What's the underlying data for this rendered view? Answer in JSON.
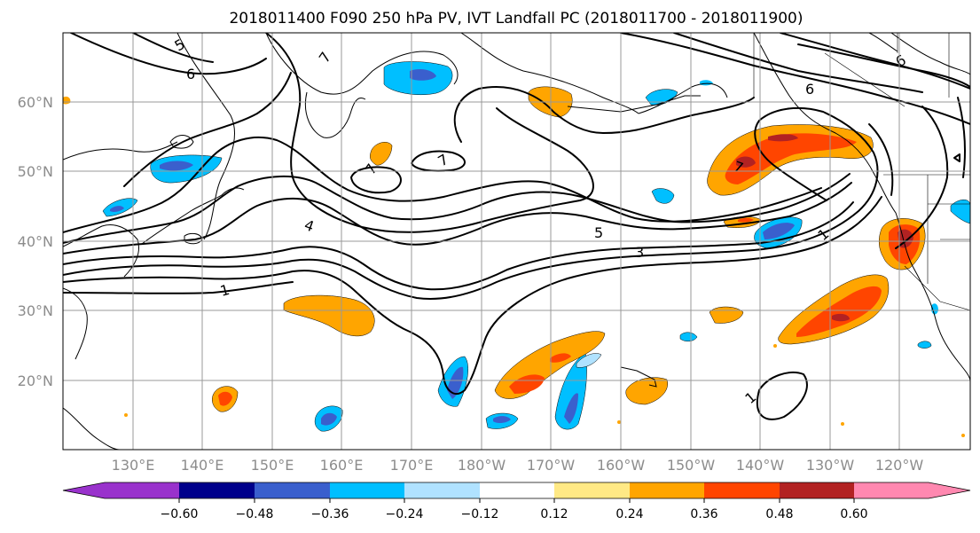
{
  "title": "2018011400 F090 250 hPa PV, IVT Landfall PC (2018011700 - 2018011900)",
  "lat_labels": [
    "60°N",
    "50°N",
    "40°N",
    "30°N",
    "20°N"
  ],
  "lon_labels": [
    "130°E",
    "140°E",
    "150°E",
    "160°E",
    "170°E",
    "180°W",
    "170°W",
    "160°W",
    "150°W",
    "140°W",
    "130°W",
    "120°W"
  ],
  "colorbar": {
    "ticks": [
      "−0.60",
      "−0.48",
      "−0.36",
      "−0.24",
      "−0.12",
      "0.12",
      "0.24",
      "0.36",
      "0.48",
      "0.60"
    ],
    "colors": [
      "#9932cc",
      "#00008b",
      "#3a5fcd",
      "#00bfff",
      "#b0e2ff",
      "#ffffff",
      "#ffe985",
      "#ffa500",
      "#ff4500",
      "#b22222",
      "#ff88b0"
    ]
  },
  "contour_labels": [
    "5",
    "6",
    "7",
    "6",
    "7",
    "7",
    "7",
    "7",
    "4",
    "5",
    "3",
    "1",
    "1",
    "1",
    "6"
  ]
}
